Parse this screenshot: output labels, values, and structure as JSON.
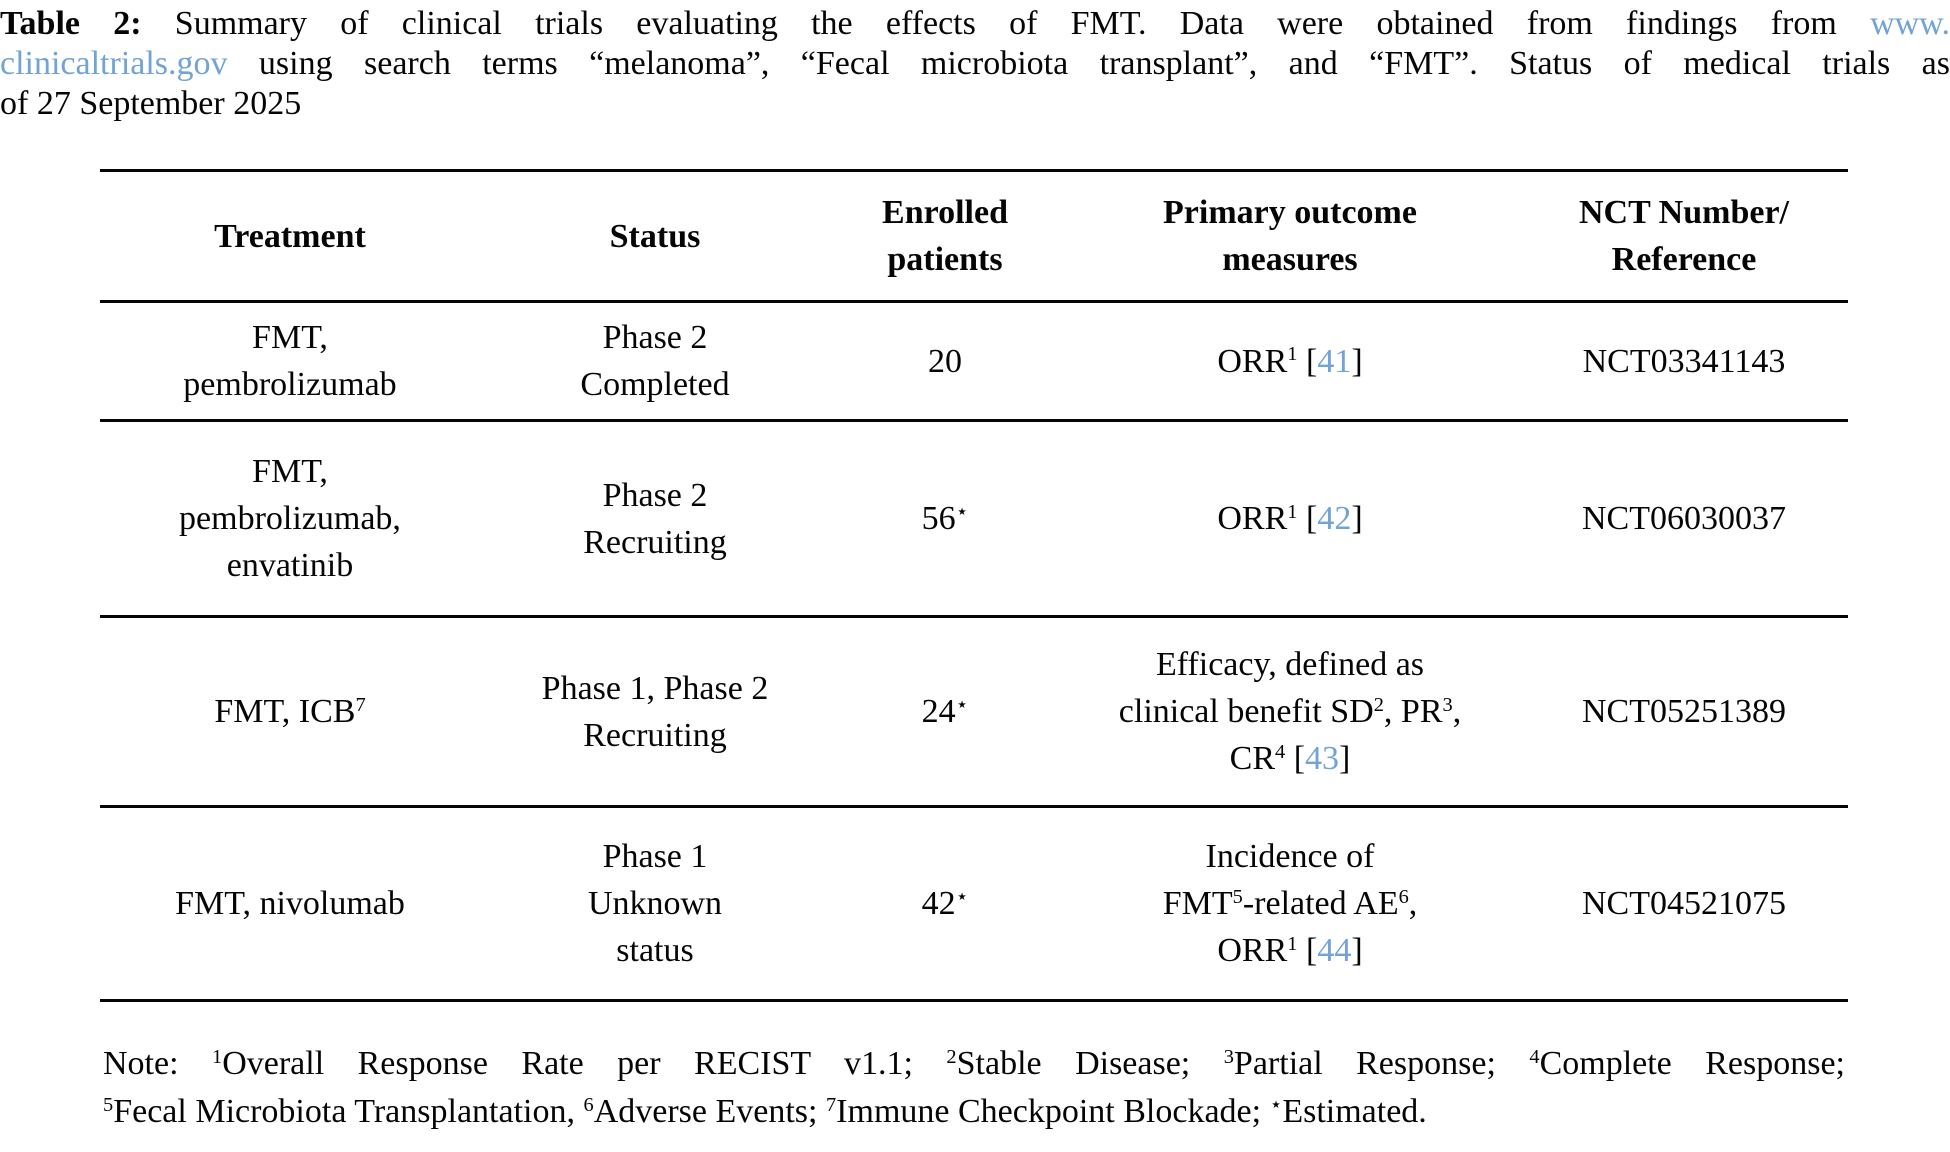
{
  "colors": {
    "link_blue": "#72a3d6",
    "text": "#050505",
    "background": "#ffffff"
  },
  "caption": {
    "lines": [
      [
        {
          "t": "Table 2:",
          "bold": true
        },
        {
          "t": " Summary of clinical trials evaluating the effects of FMT. Data were obtained from findings from "
        },
        {
          "t": "www.",
          "link": true,
          "name": "clinicaltrials-gov-link"
        }
      ],
      [
        {
          "t": "clinicaltrials.gov",
          "link": true,
          "name": "clinicaltrials-gov-link"
        },
        {
          "t": " using search terms “melanoma”, “Fecal microbiota transplant”, and “FMT”. Status of medical trials as"
        }
      ],
      [
        {
          "t": "of 27 September 2025"
        }
      ]
    ]
  },
  "table": {
    "columns": [
      {
        "id": "treatment",
        "lines": [
          [
            {
              "t": "Treatment"
            }
          ]
        ]
      },
      {
        "id": "status",
        "lines": [
          [
            {
              "t": "Status"
            }
          ]
        ]
      },
      {
        "id": "enrolled",
        "lines": [
          [
            {
              "t": "Enrolled"
            }
          ],
          [
            {
              "t": "patients"
            }
          ]
        ]
      },
      {
        "id": "outcome",
        "lines": [
          [
            {
              "t": "Primary outcome"
            }
          ],
          [
            {
              "t": "measures"
            }
          ]
        ]
      },
      {
        "id": "nct",
        "lines": [
          [
            {
              "t": "NCT Number/"
            }
          ],
          [
            {
              "t": "Reference"
            }
          ]
        ]
      }
    ],
    "rows": [
      {
        "treatment": [
          [
            {
              "t": "FMT,"
            }
          ],
          [
            {
              "t": "pembrolizumab"
            }
          ]
        ],
        "status": [
          [
            {
              "t": "Phase 2"
            }
          ],
          [
            {
              "t": "Completed"
            }
          ]
        ],
        "enrolled": [
          [
            {
              "t": "20"
            }
          ]
        ],
        "outcome": [
          [
            {
              "t": "ORR"
            },
            {
              "t": "1",
              "sup": true
            },
            {
              "t": " ["
            },
            {
              "t": "41",
              "link": true,
              "name": "citation-41"
            },
            {
              "t": "]"
            }
          ]
        ],
        "nct": [
          [
            {
              "t": "NCT03341143"
            }
          ]
        ]
      },
      {
        "treatment": [
          [
            {
              "t": "FMT,"
            }
          ],
          [
            {
              "t": "pembrolizumab,"
            }
          ],
          [
            {
              "t": "envatinib"
            }
          ]
        ],
        "status": [
          [
            {
              "t": "Phase 2"
            }
          ],
          [
            {
              "t": "Recruiting"
            }
          ]
        ],
        "enrolled": [
          [
            {
              "t": "56"
            },
            {
              "t": "⋆",
              "sup": true
            }
          ]
        ],
        "outcome": [
          [
            {
              "t": "ORR"
            },
            {
              "t": "1",
              "sup": true
            },
            {
              "t": " ["
            },
            {
              "t": "42",
              "link": true,
              "name": "citation-42"
            },
            {
              "t": "]"
            }
          ]
        ],
        "nct": [
          [
            {
              "t": "NCT06030037"
            }
          ]
        ]
      },
      {
        "treatment": [
          [
            {
              "t": "FMT, ICB"
            },
            {
              "t": "7",
              "sup": true
            }
          ]
        ],
        "status": [
          [
            {
              "t": "Phase 1, Phase 2"
            }
          ],
          [
            {
              "t": "Recruiting"
            }
          ]
        ],
        "enrolled": [
          [
            {
              "t": "24"
            },
            {
              "t": "⋆",
              "sup": true
            }
          ]
        ],
        "outcome": [
          [
            {
              "t": "Efficacy, defined as"
            }
          ],
          [
            {
              "t": "clinical benefit SD"
            },
            {
              "t": "2",
              "sup": true
            },
            {
              "t": ", PR"
            },
            {
              "t": "3",
              "sup": true
            },
            {
              "t": ","
            }
          ],
          [
            {
              "t": "CR"
            },
            {
              "t": "4",
              "sup": true
            },
            {
              "t": " ["
            },
            {
              "t": "43",
              "link": true,
              "name": "citation-43"
            },
            {
              "t": "]"
            }
          ]
        ],
        "nct": [
          [
            {
              "t": "NCT05251389"
            }
          ]
        ]
      },
      {
        "treatment": [
          [
            {
              "t": "FMT, nivolumab"
            }
          ]
        ],
        "status": [
          [
            {
              "t": "Phase 1"
            }
          ],
          [
            {
              "t": "Unknown"
            }
          ],
          [
            {
              "t": "status"
            }
          ]
        ],
        "enrolled": [
          [
            {
              "t": "42"
            },
            {
              "t": "⋆",
              "sup": true
            }
          ]
        ],
        "outcome": [
          [
            {
              "t": "Incidence of"
            }
          ],
          [
            {
              "t": "FMT"
            },
            {
              "t": "5",
              "sup": true
            },
            {
              "t": "-related AE"
            },
            {
              "t": "6",
              "sup": true
            },
            {
              "t": ","
            }
          ],
          [
            {
              "t": "ORR"
            },
            {
              "t": "1",
              "sup": true
            },
            {
              "t": " ["
            },
            {
              "t": "44",
              "link": true,
              "name": "citation-44"
            },
            {
              "t": "]"
            }
          ]
        ],
        "nct": [
          [
            {
              "t": "NCT04521075"
            }
          ]
        ]
      }
    ]
  },
  "note": {
    "lines": [
      [
        {
          "t": "Note: "
        },
        {
          "t": "1",
          "sup": true
        },
        {
          "t": "Overall Response Rate per RECIST v1.1; "
        },
        {
          "t": "2",
          "sup": true
        },
        {
          "t": "Stable Disease; "
        },
        {
          "t": "3",
          "sup": true
        },
        {
          "t": "Partial Response; "
        },
        {
          "t": "4",
          "sup": true
        },
        {
          "t": "Complete Response;"
        }
      ],
      [
        {
          "t": "5",
          "sup": true
        },
        {
          "t": "Fecal Microbiota Transplantation, "
        },
        {
          "t": "6",
          "sup": true
        },
        {
          "t": "Adverse Events; "
        },
        {
          "t": "7",
          "sup": true
        },
        {
          "t": "Immune Checkpoint Blockade; "
        },
        {
          "t": "⋆",
          "sup": true
        },
        {
          "t": "Estimated."
        }
      ]
    ]
  }
}
